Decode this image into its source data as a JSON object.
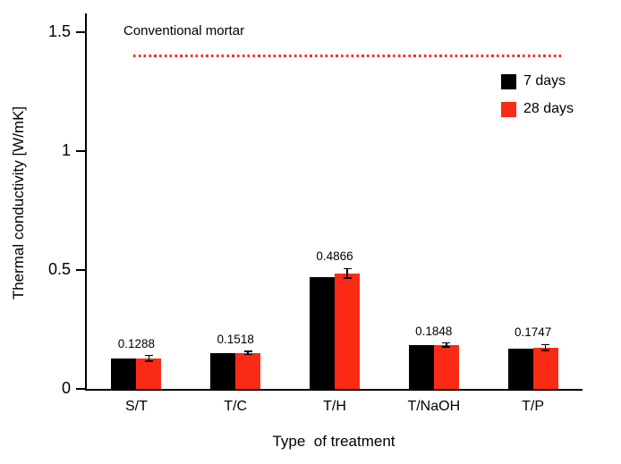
{
  "chart_data": {
    "type": "bar",
    "title": "",
    "xlabel": "Type  of treatment",
    "ylabel": "Thermal conductivity [W/mK]",
    "categories": [
      "S/T",
      "T/C",
      "T/H",
      "T/NaOH",
      "T/P"
    ],
    "series": [
      {
        "name": "7 days",
        "color": "#000000",
        "values": [
          0.127,
          0.15,
          0.47,
          0.185,
          0.17
        ],
        "errors": [
          0,
          0,
          0,
          0,
          0
        ]
      },
      {
        "name": "28 days",
        "color": "#fb2a15",
        "values": [
          0.1288,
          0.1518,
          0.4866,
          0.1848,
          0.1747
        ],
        "errors": [
          0.012,
          0.007,
          0.02,
          0.008,
          0.012
        ]
      }
    ],
    "value_labels": [
      "0.1288",
      "0.1518",
      "0.4866",
      "0.1848",
      "0.1747"
    ],
    "reference_line": {
      "label": "Conventional mortar",
      "value": 1.4,
      "style": "dotted",
      "color": "#fb2a15"
    },
    "ylim": [
      0,
      1.58
    ],
    "yticks": [
      0,
      0.5,
      1,
      1.5
    ],
    "ytick_labels": [
      "0",
      "0.5",
      "1",
      "1.5"
    ],
    "legend_position": "top-right",
    "grid": false
  }
}
